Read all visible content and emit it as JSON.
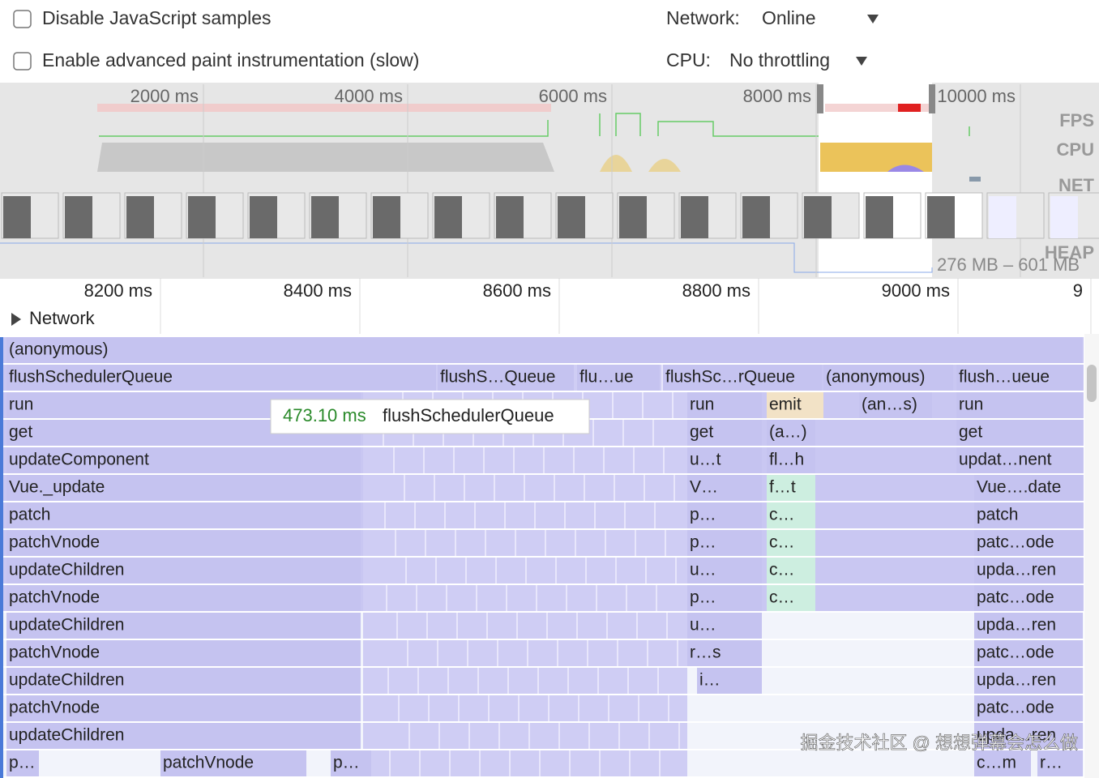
{
  "settings": {
    "disable_js": "Disable JavaScript samples",
    "advanced_paint": "Enable advanced paint instrumentation (slow)",
    "network_label": "Network:",
    "network_value": "Online",
    "cpu_label": "CPU:",
    "cpu_value": "No throttling"
  },
  "overview": {
    "ticks": [
      "2000 ms",
      "4000 ms",
      "6000 ms",
      "8000 ms",
      "10000 ms"
    ],
    "tracks": [
      "FPS",
      "CPU",
      "NET",
      "HEAP"
    ],
    "heap_range": "276 MB – 601 MB"
  },
  "ruler": {
    "ticks": [
      "8200 ms",
      "8400 ms",
      "8600 ms",
      "8800 ms",
      "9000 ms",
      "9"
    ]
  },
  "network": "Network",
  "flame": {
    "rows": [
      [
        "(anonymous)"
      ],
      [
        "flushSchedulerQueue",
        "flushS…Queue",
        "flu…ue",
        "flushSc…rQueue",
        "(anonymous)",
        "flush…ueue"
      ],
      [
        "run",
        "run",
        "emit",
        "(an…s)",
        "run"
      ],
      [
        "get",
        "get",
        "(a…)",
        "get"
      ],
      [
        "updateComponent",
        "u…t",
        "fl…h",
        "updat…nent"
      ],
      [
        "Vue._update",
        "V…",
        "f…t",
        "Vue….date"
      ],
      [
        "patch",
        "p…",
        "c…",
        "patch"
      ],
      [
        "patchVnode",
        "p…",
        "c…",
        "patc…ode"
      ],
      [
        "updateChildren",
        "u…",
        "c…",
        "upda…ren"
      ],
      [
        "patchVnode",
        "p…",
        "c…",
        "patc…ode"
      ],
      [
        "updateChildren",
        "u…",
        "upda…ren"
      ],
      [
        "patchVnode",
        "r…s",
        "patc…ode"
      ],
      [
        "updateChildren",
        "i…",
        "upda…ren"
      ],
      [
        "patchVnode",
        "patc…ode"
      ],
      [
        "updateChildren",
        "upda…ren"
      ],
      [
        "p…",
        "patchVnode",
        "p…",
        "c…m",
        "r…"
      ]
    ]
  },
  "tooltip": {
    "duration": "473.10 ms",
    "name": "flushSchedulerQueue"
  },
  "watermark": "掘金技术社区 @ 想想弹幕会怎么做"
}
